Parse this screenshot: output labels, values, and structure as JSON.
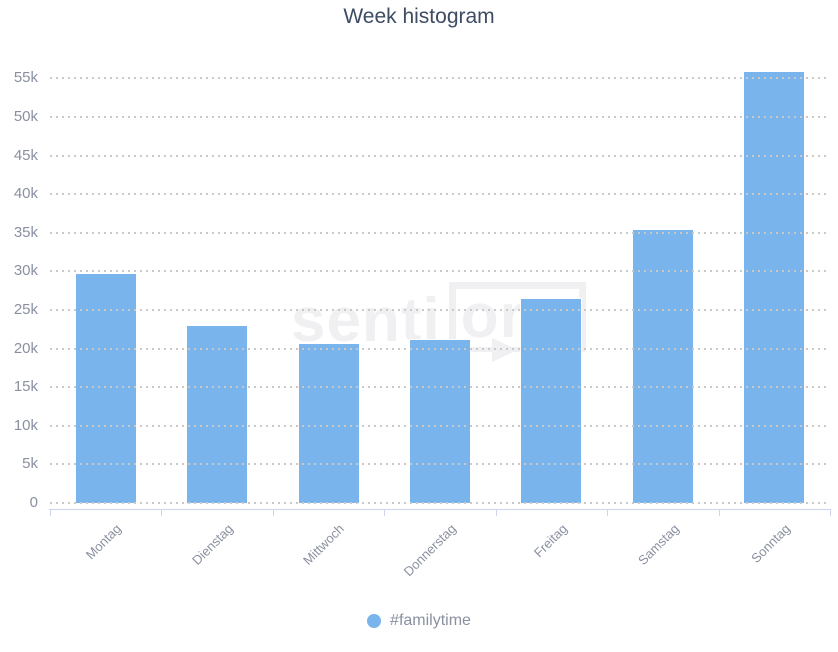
{
  "title": "Week histogram",
  "legend": {
    "items": [
      {
        "label": "#familytime",
        "color": "#7ab4ec"
      }
    ]
  },
  "watermark": {
    "part1": "senti",
    "part2": "one"
  },
  "colors": {
    "bar": "#7ab4ec",
    "bar_border": "#ffffff",
    "grid_dot": "#c9c9c9",
    "axis_line": "#ccd6eb",
    "title_text": "#3d4c63",
    "axis_label_text": "#8a90a0",
    "legend_text": "#8a90a0",
    "watermark": "#f0f0f2"
  },
  "chart_data": {
    "type": "bar",
    "title": "Week histogram",
    "categories": [
      "Montag",
      "Dienstag",
      "Mittwoch",
      "Donnerstag",
      "Freitag",
      "Samstag",
      "Sonntag"
    ],
    "series": [
      {
        "name": "#familytime",
        "values": [
          29800,
          23000,
          20700,
          21300,
          26500,
          35500,
          56000
        ]
      }
    ],
    "xlabel": "",
    "ylabel": "",
    "ylim": [
      0,
      57500
    ],
    "yticks": [
      0,
      5000,
      10000,
      15000,
      20000,
      25000,
      30000,
      35000,
      40000,
      45000,
      50000,
      55000
    ],
    "ytick_labels": [
      "0",
      "5k",
      "10k",
      "15k",
      "20k",
      "25k",
      "30k",
      "35k",
      "40k",
      "45k",
      "50k",
      "55k"
    ],
    "grid": "dotted-horizontal",
    "legend_position": "bottom",
    "bar_color": "#7ab4ec"
  }
}
